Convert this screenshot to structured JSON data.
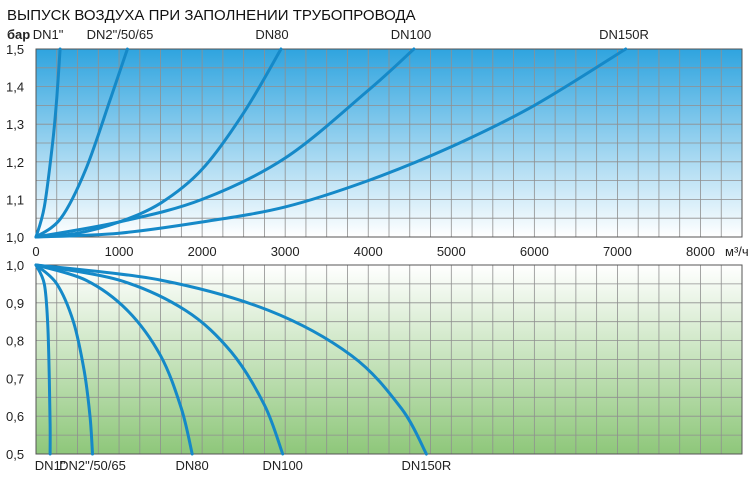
{
  "chart_data": [
    {
      "type": "line",
      "title": "ВЫПУСК ВОЗДУХА ПРИ ЗАПОЛНЕНИИ ТРУБОПРОВОДА",
      "ylabel": "бар",
      "xlabel": "м³/ч",
      "xlim": [
        0,
        8500
      ],
      "ylim": [
        1.0,
        1.5
      ],
      "x_ticks": [
        "0",
        "1000",
        "2000",
        "3000",
        "4000",
        "5000",
        "6000",
        "7000",
        "8000"
      ],
      "y_ticks": [
        "1,0",
        "1,1",
        "1,2",
        "1,3",
        "1,4",
        "1,5"
      ],
      "grid": true,
      "background": [
        "#2fa4df",
        "#ffffff"
      ],
      "series": [
        {
          "name": "DN1\"",
          "x": [
            0,
            100,
            200,
            250,
            290
          ],
          "y": [
            1.0,
            1.08,
            1.25,
            1.37,
            1.5
          ]
        },
        {
          "name": "DN2\"/50/65",
          "x": [
            0,
            300,
            600,
            900,
            1100
          ],
          "y": [
            1.0,
            1.05,
            1.18,
            1.37,
            1.5
          ]
        },
        {
          "name": "DN80",
          "x": [
            0,
            500,
            1000,
            1500,
            2000,
            2500,
            2950
          ],
          "y": [
            1.0,
            1.01,
            1.04,
            1.09,
            1.18,
            1.33,
            1.5
          ]
        },
        {
          "name": "DN100",
          "x": [
            0,
            1000,
            2000,
            3000,
            4000,
            4550
          ],
          "y": [
            1.0,
            1.04,
            1.1,
            1.21,
            1.39,
            1.5
          ]
        },
        {
          "name": "DN150R",
          "x": [
            0,
            1000,
            2000,
            3000,
            4000,
            5000,
            6000,
            7100
          ],
          "y": [
            1.0,
            1.01,
            1.04,
            1.08,
            1.15,
            1.24,
            1.35,
            1.5
          ]
        }
      ]
    },
    {
      "type": "line",
      "xlim": [
        0,
        8500
      ],
      "ylim": [
        0.5,
        1.0
      ],
      "y_ticks": [
        "0,5",
        "0,6",
        "0,7",
        "0,8",
        "0,9",
        "1,0"
      ],
      "grid": true,
      "background": [
        "#ffffff",
        "#8ec77a"
      ],
      "series": [
        {
          "name": "DN1\"",
          "x": [
            0,
            100,
            140,
            160,
            170,
            170
          ],
          "y": [
            1.0,
            0.95,
            0.85,
            0.7,
            0.58,
            0.5
          ]
        },
        {
          "name": "DN2\"/50/65",
          "x": [
            0,
            250,
            450,
            580,
            650,
            680
          ],
          "y": [
            1.0,
            0.95,
            0.85,
            0.72,
            0.6,
            0.5
          ]
        },
        {
          "name": "DN80",
          "x": [
            0,
            600,
            1100,
            1500,
            1750,
            1880
          ],
          "y": [
            1.0,
            0.96,
            0.88,
            0.76,
            0.62,
            0.5
          ]
        },
        {
          "name": "DN100",
          "x": [
            0,
            1000,
            1800,
            2350,
            2750,
            2970
          ],
          "y": [
            1.0,
            0.96,
            0.88,
            0.77,
            0.63,
            0.5
          ]
        },
        {
          "name": "DN150R",
          "x": [
            0,
            1500,
            2800,
            3800,
            4400,
            4700
          ],
          "y": [
            1.0,
            0.96,
            0.88,
            0.76,
            0.62,
            0.5
          ]
        }
      ]
    }
  ]
}
